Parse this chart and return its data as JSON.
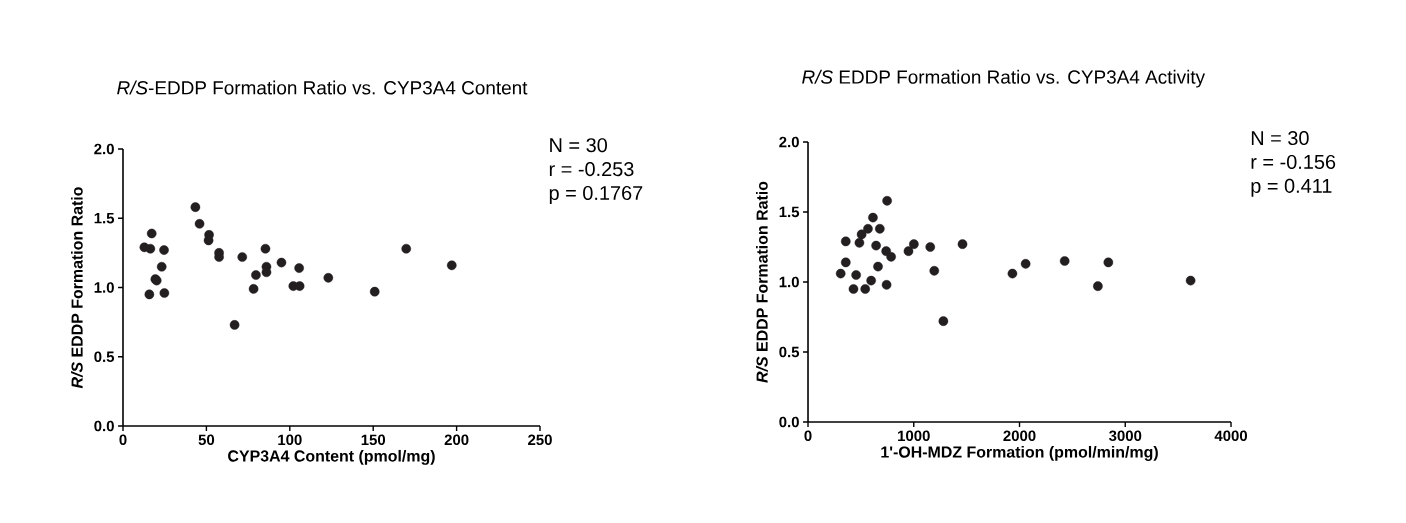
{
  "chart_data": [
    {
      "type": "scatter",
      "title": "*R/S*-EDDP Formation Ratio vs. CYP3A4 Content",
      "xlabel": "CYP3A4 Content (pmol/mg)",
      "ylabel": "*R/S* EDDP  Formation Ratio",
      "xlim": [
        0,
        250
      ],
      "xticks": [
        0,
        50,
        100,
        150,
        200,
        250
      ],
      "ylim": [
        0,
        2.0
      ],
      "yticks": [
        {
          "value": 0,
          "label": "0.0"
        },
        {
          "value": 0.5,
          "label": "0.5"
        },
        {
          "value": 1,
          "label": "1.0"
        },
        {
          "value": 1.5,
          "label": "1.5"
        },
        {
          "value": 2,
          "label": "2.0"
        }
      ],
      "marker": "circle",
      "annotations": [
        "N = 30",
        "r = -0.253",
        "p = 0.1767"
      ],
      "x": [
        12.8,
        16.4,
        17.2,
        15.8,
        19.4,
        20.2,
        23.2,
        24.6,
        24.8,
        43.4,
        45.9,
        51.6,
        51.3,
        57.6,
        57.6,
        66.9,
        71.5,
        78.3,
        79.7,
        85.4,
        86.0,
        86.0,
        95.0,
        102.1,
        105.9,
        105.6,
        123.1,
        150.9,
        169.8,
        197.1
      ],
      "series": [
        {
          "color": "#231f20",
          "values": [
            1.29,
            1.28,
            1.39,
            0.95,
            1.06,
            1.05,
            1.15,
            1.27,
            0.96,
            1.58,
            1.46,
            1.38,
            1.34,
            1.25,
            1.22,
            0.73,
            1.22,
            0.99,
            1.09,
            1.28,
            1.15,
            1.11,
            1.18,
            1.01,
            1.01,
            1.14,
            1.07,
            0.97,
            1.28,
            1.16
          ]
        }
      ]
    },
    {
      "type": "scatter",
      "title": "*R/S* EDDP Formation Ratio vs. CYP3A4 Activity",
      "xlabel": "1'-OH-MDZ Formation (pmol/min/mg)",
      "ylabel": "*R/S* EDDP  Formation Ratio",
      "xlim": [
        0,
        4000
      ],
      "xticks": [
        0,
        1000,
        2000,
        3000,
        4000
      ],
      "ylim": [
        0,
        2.0
      ],
      "yticks": [
        {
          "value": 0,
          "label": "0.0"
        },
        {
          "value": 0.5,
          "label": "0.5"
        },
        {
          "value": 1,
          "label": "1.0"
        },
        {
          "value": 1.5,
          "label": "1.5"
        },
        {
          "value": 2,
          "label": "2.0"
        }
      ],
      "marker": "circle",
      "annotations": [
        "N = 30",
        "r = -0.156",
        "p = 0.411"
      ],
      "x": [
        309,
        357,
        357,
        430,
        455,
        486,
        507,
        541,
        567,
        597,
        614,
        644,
        662,
        679,
        739,
        743,
        748,
        786,
        950,
        1001,
        1156,
        1194,
        1280,
        1461,
        1933,
        2058,
        2427,
        2741,
        2840,
        3618
      ],
      "series": [
        {
          "color": "#231f20",
          "values": [
            1.06,
            1.14,
            1.29,
            0.95,
            1.05,
            1.28,
            1.34,
            0.95,
            1.38,
            1.01,
            1.46,
            1.26,
            1.11,
            1.38,
            1.22,
            0.98,
            1.58,
            1.18,
            1.22,
            1.27,
            1.25,
            1.08,
            0.72,
            1.27,
            1.06,
            1.13,
            1.15,
            0.97,
            1.14,
            1.01
          ]
        }
      ]
    }
  ]
}
